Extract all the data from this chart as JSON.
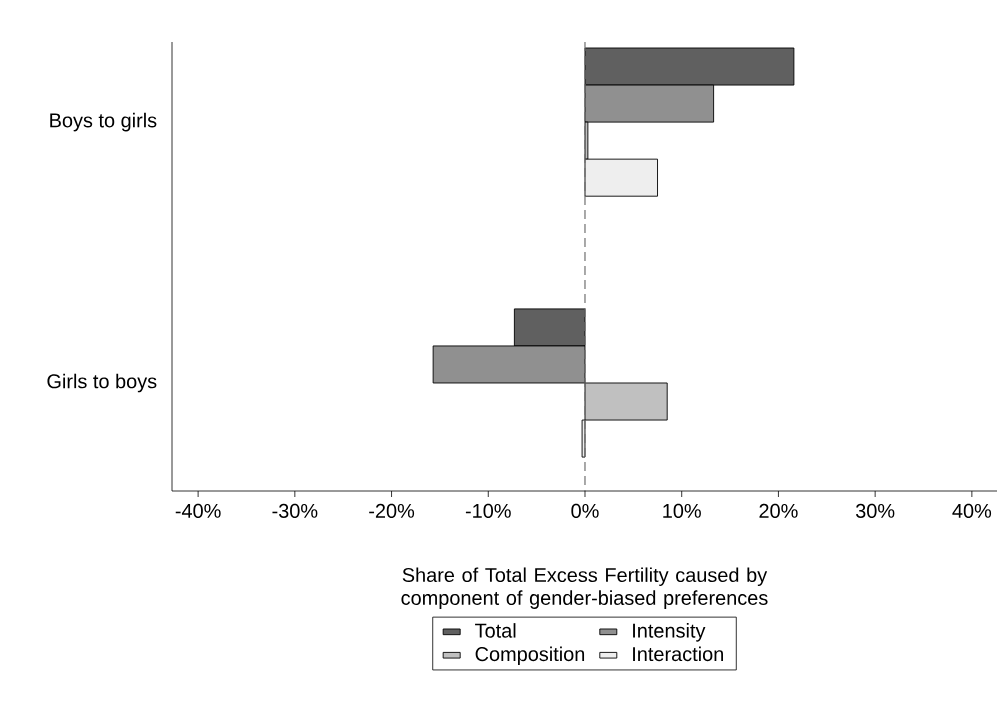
{
  "chart_data": {
    "type": "bar",
    "orientation": "horizontal",
    "xlabel": "Share of Total Excess Fertility caused by component of gender-biased preferences",
    "categories": [
      "Boys to girls",
      "Girls to boys"
    ],
    "series": [
      {
        "name": "Total",
        "color": "#606060",
        "values": [
          21.6,
          -7.3
        ]
      },
      {
        "name": "Intensity",
        "color": "#909090",
        "values": [
          13.3,
          -15.7
        ]
      },
      {
        "name": "Composition",
        "color": "#c0c0c0",
        "values": [
          0.3,
          8.5
        ]
      },
      {
        "name": "Interaction",
        "color": "#eeeeee",
        "values": [
          7.5,
          -0.3
        ]
      }
    ],
    "xlim": [
      -42.7,
      42.6
    ],
    "xticks": [
      {
        "value": -40,
        "label": "-40%"
      },
      {
        "value": -30,
        "label": "-30%"
      },
      {
        "value": -20,
        "label": "-20%"
      },
      {
        "value": -10,
        "label": "-10%"
      },
      {
        "value": 0,
        "label": "0%"
      },
      {
        "value": 10,
        "label": "10%"
      },
      {
        "value": 20,
        "label": "20%"
      },
      {
        "value": 30,
        "label": "30%"
      },
      {
        "value": 40,
        "label": "40%"
      }
    ],
    "ref_lines": [
      {
        "axis": "x",
        "value": 0,
        "color": "#707070",
        "line_style": "dashed"
      }
    ],
    "legend": "bottom",
    "grid": false
  }
}
